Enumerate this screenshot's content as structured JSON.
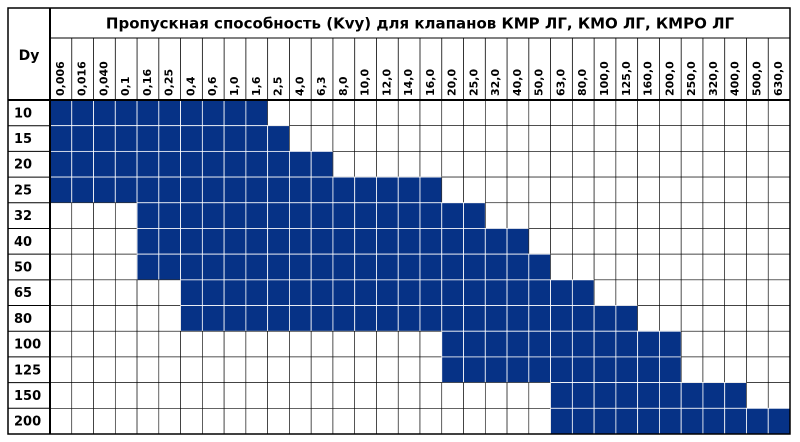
{
  "table": {
    "title": "Пропускная способность (Kvy) для клапанов КМР ЛГ, КМО ЛГ, КМРО ЛГ",
    "row_header": "Dy",
    "columns": [
      "0,006",
      "0,016",
      "0,040",
      "0,1",
      "0,16",
      "0,25",
      "0,4",
      "0,6",
      "1,0",
      "1,6",
      "2,5",
      "4,0",
      "6,3",
      "8,0",
      "10,0",
      "12,0",
      "14,0",
      "16,0",
      "20,0",
      "25,0",
      "32,0",
      "40,0",
      "50,0",
      "63,0",
      "80,0",
      "100,0",
      "125,0",
      "160,0",
      "200,0",
      "250,0",
      "320,0",
      "400,0",
      "500,0",
      "630,0"
    ],
    "rows": [
      {
        "label": "10",
        "cells": [
          true,
          true,
          true,
          true,
          true,
          true,
          true,
          true,
          true,
          true,
          false,
          false,
          false,
          false,
          false,
          false,
          false,
          false,
          false,
          false,
          false,
          false,
          false,
          false,
          false,
          false,
          false,
          false,
          false,
          false,
          false,
          false,
          false,
          false
        ]
      },
      {
        "label": "15",
        "cells": [
          true,
          true,
          true,
          true,
          true,
          true,
          true,
          true,
          true,
          true,
          true,
          false,
          false,
          false,
          false,
          false,
          false,
          false,
          false,
          false,
          false,
          false,
          false,
          false,
          false,
          false,
          false,
          false,
          false,
          false,
          false,
          false,
          false,
          false
        ]
      },
      {
        "label": "20",
        "cells": [
          true,
          true,
          true,
          true,
          true,
          true,
          true,
          true,
          true,
          true,
          true,
          true,
          true,
          false,
          false,
          false,
          false,
          false,
          false,
          false,
          false,
          false,
          false,
          false,
          false,
          false,
          false,
          false,
          false,
          false,
          false,
          false,
          false,
          false
        ]
      },
      {
        "label": "25",
        "cells": [
          true,
          true,
          true,
          true,
          true,
          true,
          true,
          true,
          true,
          true,
          true,
          true,
          true,
          true,
          true,
          true,
          true,
          true,
          false,
          false,
          false,
          false,
          false,
          false,
          false,
          false,
          false,
          false,
          false,
          false,
          false,
          false,
          false,
          false
        ]
      },
      {
        "label": "32",
        "cells": [
          false,
          false,
          false,
          false,
          true,
          true,
          true,
          true,
          true,
          true,
          true,
          true,
          true,
          true,
          true,
          true,
          true,
          true,
          true,
          true,
          false,
          false,
          false,
          false,
          false,
          false,
          false,
          false,
          false,
          false,
          false,
          false,
          false,
          false
        ]
      },
      {
        "label": "40",
        "cells": [
          false,
          false,
          false,
          false,
          true,
          true,
          true,
          true,
          true,
          true,
          true,
          true,
          true,
          true,
          true,
          true,
          true,
          true,
          true,
          true,
          true,
          true,
          false,
          false,
          false,
          false,
          false,
          false,
          false,
          false,
          false,
          false,
          false,
          false
        ]
      },
      {
        "label": "50",
        "cells": [
          false,
          false,
          false,
          false,
          true,
          true,
          true,
          true,
          true,
          true,
          true,
          true,
          true,
          true,
          true,
          true,
          true,
          true,
          true,
          true,
          true,
          true,
          true,
          false,
          false,
          false,
          false,
          false,
          false,
          false,
          false,
          false,
          false,
          false
        ]
      },
      {
        "label": "65",
        "cells": [
          false,
          false,
          false,
          false,
          false,
          false,
          true,
          true,
          true,
          true,
          true,
          true,
          true,
          true,
          true,
          true,
          true,
          true,
          true,
          true,
          true,
          true,
          true,
          true,
          true,
          false,
          false,
          false,
          false,
          false,
          false,
          false,
          false,
          false
        ]
      },
      {
        "label": "80",
        "cells": [
          false,
          false,
          false,
          false,
          false,
          false,
          true,
          true,
          true,
          true,
          true,
          true,
          true,
          true,
          true,
          true,
          true,
          true,
          true,
          true,
          true,
          true,
          true,
          true,
          true,
          true,
          true,
          false,
          false,
          false,
          false,
          false,
          false,
          false
        ]
      },
      {
        "label": "100",
        "cells": [
          false,
          false,
          false,
          false,
          false,
          false,
          false,
          false,
          false,
          false,
          false,
          false,
          false,
          false,
          false,
          false,
          false,
          false,
          true,
          true,
          true,
          true,
          true,
          true,
          true,
          true,
          true,
          true,
          true,
          false,
          false,
          false,
          false,
          false
        ]
      },
      {
        "label": "125",
        "cells": [
          false,
          false,
          false,
          false,
          false,
          false,
          false,
          false,
          false,
          false,
          false,
          false,
          false,
          false,
          false,
          false,
          false,
          false,
          true,
          true,
          true,
          true,
          true,
          true,
          true,
          true,
          true,
          true,
          true,
          false,
          false,
          false,
          false,
          false
        ]
      },
      {
        "label": "150",
        "cells": [
          false,
          false,
          false,
          false,
          false,
          false,
          false,
          false,
          false,
          false,
          false,
          false,
          false,
          false,
          false,
          false,
          false,
          false,
          false,
          false,
          false,
          false,
          false,
          true,
          true,
          true,
          true,
          true,
          true,
          true,
          true,
          true,
          false,
          false
        ]
      },
      {
        "label": "200",
        "cells": [
          false,
          false,
          false,
          false,
          false,
          false,
          false,
          false,
          false,
          false,
          false,
          false,
          false,
          false,
          false,
          false,
          false,
          false,
          false,
          false,
          false,
          false,
          false,
          true,
          true,
          true,
          true,
          true,
          true,
          true,
          true,
          true,
          true,
          true
        ]
      }
    ]
  }
}
